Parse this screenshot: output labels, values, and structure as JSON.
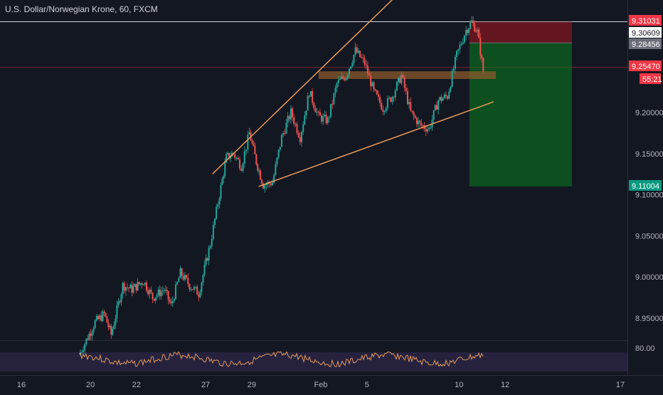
{
  "chart_data": {
    "type": "candlestick",
    "title": "U.S. Dollar/Norwegian Krone, 60, FXCM",
    "y_range": [
      8.9,
      9.32
    ],
    "y_ticks": [
      "9.20000",
      "9.15000",
      "9.10000",
      "9.05000",
      "9.00000",
      "8.95000"
    ],
    "y_tick_values": [
      9.2,
      9.15,
      9.1,
      9.05,
      9.0,
      8.95
    ],
    "x_ticks": [
      "16",
      "20",
      "22",
      "27",
      "29",
      "Feb",
      "5",
      "10",
      "12",
      "17"
    ],
    "x_tick_positions": [
      0.0,
      3.0,
      5.0,
      8.0,
      10.0,
      13.0,
      15.0,
      19.0,
      21.0,
      26.0
    ],
    "price_path": [
      [
        2.5,
        8.905
      ],
      [
        3.2,
        8.945
      ],
      [
        3.6,
        8.955
      ],
      [
        3.9,
        8.93
      ],
      [
        4.4,
        8.99
      ],
      [
        4.8,
        8.985
      ],
      [
        5.3,
        8.995
      ],
      [
        5.7,
        8.975
      ],
      [
        6.2,
        8.985
      ],
      [
        6.5,
        8.965
      ],
      [
        6.9,
        9.005
      ],
      [
        7.3,
        8.99
      ],
      [
        7.7,
        8.98
      ],
      [
        8.2,
        9.04
      ],
      [
        8.6,
        9.1
      ],
      [
        8.9,
        9.145
      ],
      [
        9.2,
        9.15
      ],
      [
        9.55,
        9.135
      ],
      [
        9.9,
        9.175
      ],
      [
        10.2,
        9.14
      ],
      [
        10.5,
        9.112
      ],
      [
        10.9,
        9.115
      ],
      [
        11.3,
        9.17
      ],
      [
        11.7,
        9.2
      ],
      [
        12.1,
        9.17
      ],
      [
        12.5,
        9.225
      ],
      [
        12.9,
        9.195
      ],
      [
        13.3,
        9.19
      ],
      [
        13.7,
        9.235
      ],
      [
        14.1,
        9.245
      ],
      [
        14.5,
        9.275
      ],
      [
        14.9,
        9.26
      ],
      [
        15.3,
        9.225
      ],
      [
        15.7,
        9.205
      ],
      [
        16.1,
        9.22
      ],
      [
        16.5,
        9.245
      ],
      [
        16.9,
        9.2
      ],
      [
        17.3,
        9.185
      ],
      [
        17.7,
        9.18
      ],
      [
        18.1,
        9.215
      ],
      [
        18.5,
        9.22
      ],
      [
        18.9,
        9.27
      ],
      [
        19.3,
        9.3
      ],
      [
        19.55,
        9.31
      ],
      [
        19.8,
        9.298
      ],
      [
        20.05,
        9.25
      ]
    ],
    "drawings": {
      "upper_channel": [
        [
          8.3,
          9.16
        ],
        [
          10.1,
          9.19
        ],
        [
          14.3,
          9.28
        ],
        [
          16.9,
          9.35
        ]
      ],
      "lower_channel": [
        [
          10.3,
          9.11
        ],
        [
          20.5,
          9.213
        ]
      ],
      "resistance_box": [
        12.9,
        20.6,
        9.245,
        9.25
      ],
      "resistance_hline": 9.2547,
      "top_hline": 9.3103,
      "trade_box": {
        "x_start": 19.45,
        "x_end": 23.9,
        "stop": 9.31031,
        "entry": 9.28456,
        "target": 9.11004
      }
    },
    "price_labels": [
      {
        "text": "9.31031",
        "value": 9.31031,
        "color": "#f23645"
      },
      {
        "text": "9.30609",
        "value": 9.30609,
        "color": "#ffffff"
      },
      {
        "text": "9.28456",
        "value": 9.28456,
        "color": "#6a6d78"
      },
      {
        "text": "9.25470",
        "value": 9.2547,
        "color": "#f23645"
      },
      {
        "text": "55:21",
        "value": 9.2495,
        "color": "#f23645"
      },
      {
        "text": "9.11004",
        "value": 9.11004,
        "color": "#089981"
      }
    ],
    "indicator": {
      "type": "oscillator",
      "tick_label": "80.00",
      "band": [
        20,
        80
      ],
      "range": [
        0,
        100
      ]
    }
  }
}
